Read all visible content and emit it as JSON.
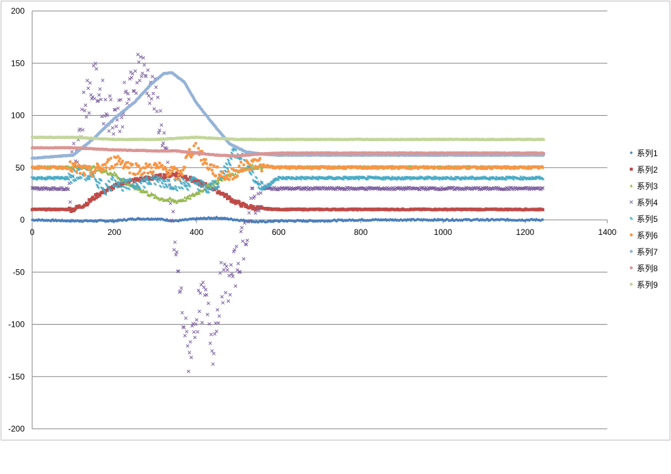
{
  "chart_data": {
    "type": "scatter",
    "title": "",
    "xlabel": "",
    "ylabel": "",
    "xlim": [
      0,
      1400
    ],
    "ylim": [
      -200,
      200
    ],
    "x_ticks": [
      "0",
      "200",
      "400",
      "600",
      "800",
      "1000",
      "1200",
      "1400"
    ],
    "y_ticks": [
      "200",
      "150",
      "100",
      "50",
      "0",
      "-50",
      "-100",
      "-150",
      "-200"
    ],
    "grid": "horizontal major gridlines",
    "legend_position": "right",
    "series": [
      {
        "name": "系列1",
        "color": "#4a7ebb",
        "marker": "diamond",
        "points": [
          [
            0,
            0
          ],
          [
            100,
            -1
          ],
          [
            150,
            -1
          ],
          [
            200,
            -1
          ],
          [
            250,
            1
          ],
          [
            300,
            1
          ],
          [
            350,
            -1
          ],
          [
            400,
            1
          ],
          [
            450,
            2
          ],
          [
            500,
            0
          ],
          [
            550,
            -2
          ],
          [
            600,
            -1
          ],
          [
            700,
            -1
          ],
          [
            800,
            0
          ],
          [
            1000,
            0
          ],
          [
            1245,
            0
          ]
        ]
      },
      {
        "name": "系列2",
        "color": "#be4b48",
        "marker": "square",
        "points": [
          [
            0,
            10
          ],
          [
            50,
            10
          ],
          [
            100,
            10
          ],
          [
            130,
            15
          ],
          [
            160,
            24
          ],
          [
            190,
            30
          ],
          [
            220,
            35
          ],
          [
            250,
            38
          ],
          [
            290,
            40
          ],
          [
            320,
            42
          ],
          [
            350,
            44
          ],
          [
            370,
            42
          ],
          [
            400,
            36
          ],
          [
            430,
            32
          ],
          [
            460,
            26
          ],
          [
            490,
            18
          ],
          [
            520,
            13
          ],
          [
            550,
            11
          ],
          [
            600,
            10
          ],
          [
            800,
            10
          ],
          [
            1000,
            10
          ],
          [
            1245,
            10
          ]
        ]
      },
      {
        "name": "系列3",
        "color": "#98b954",
        "marker": "triangle",
        "points": [
          [
            0,
            51
          ],
          [
            100,
            51
          ],
          [
            150,
            50
          ],
          [
            200,
            44
          ],
          [
            240,
            33
          ],
          [
            270,
            28
          ],
          [
            300,
            22
          ],
          [
            320,
            20
          ],
          [
            350,
            18
          ],
          [
            380,
            21
          ],
          [
            410,
            28
          ],
          [
            440,
            35
          ],
          [
            470,
            41
          ],
          [
            500,
            47
          ],
          [
            530,
            51
          ],
          [
            550,
            51
          ],
          [
            600,
            51
          ],
          [
            800,
            51
          ],
          [
            1000,
            51
          ],
          [
            1245,
            51
          ]
        ]
      },
      {
        "name": "系列4",
        "color": "#7d60a0",
        "marker": "x",
        "points": [
          [
            0,
            30
          ],
          [
            50,
            30
          ],
          [
            90,
            30
          ],
          [
            110,
            75
          ],
          [
            130,
            115
          ],
          [
            155,
            132
          ],
          [
            180,
            105
          ],
          [
            210,
            100
          ],
          [
            240,
            125
          ],
          [
            260,
            150
          ],
          [
            280,
            135
          ],
          [
            300,
            115
          ],
          [
            320,
            80
          ],
          [
            335,
            20
          ],
          [
            350,
            -35
          ],
          [
            365,
            -85
          ],
          [
            380,
            -130
          ],
          [
            400,
            -90
          ],
          [
            420,
            -75
          ],
          [
            440,
            -120
          ],
          [
            460,
            -60
          ],
          [
            480,
            -60
          ],
          [
            500,
            -40
          ],
          [
            520,
            -10
          ],
          [
            540,
            20
          ],
          [
            560,
            30
          ],
          [
            600,
            30
          ],
          [
            800,
            30
          ],
          [
            1000,
            30
          ],
          [
            1245,
            30
          ]
        ]
      },
      {
        "name": "系列5",
        "color": "#46aac5",
        "marker": "star",
        "points": [
          [
            0,
            40
          ],
          [
            90,
            40
          ],
          [
            120,
            45
          ],
          [
            150,
            40
          ],
          [
            180,
            30
          ],
          [
            200,
            38
          ],
          [
            230,
            32
          ],
          [
            260,
            36
          ],
          [
            300,
            38
          ],
          [
            330,
            36
          ],
          [
            360,
            34
          ],
          [
            400,
            36
          ],
          [
            430,
            28
          ],
          [
            460,
            40
          ],
          [
            490,
            65
          ],
          [
            520,
            62
          ],
          [
            540,
            40
          ],
          [
            560,
            30
          ],
          [
            600,
            40
          ],
          [
            700,
            40
          ],
          [
            730,
            40
          ],
          [
            800,
            40
          ],
          [
            1000,
            40
          ],
          [
            1245,
            40
          ]
        ]
      },
      {
        "name": "系列6",
        "color": "#f79646",
        "marker": "circle",
        "points": [
          [
            0,
            50
          ],
          [
            100,
            50
          ],
          [
            140,
            45
          ],
          [
            180,
            52
          ],
          [
            210,
            58
          ],
          [
            240,
            50
          ],
          [
            270,
            48
          ],
          [
            300,
            50
          ],
          [
            330,
            48
          ],
          [
            360,
            42
          ],
          [
            380,
            62
          ],
          [
            400,
            70
          ],
          [
            420,
            55
          ],
          [
            450,
            45
          ],
          [
            480,
            42
          ],
          [
            510,
            50
          ],
          [
            540,
            55
          ],
          [
            560,
            52
          ],
          [
            600,
            50
          ],
          [
            800,
            50
          ],
          [
            1000,
            50
          ],
          [
            1245,
            50
          ]
        ]
      },
      {
        "name": "系列7",
        "color": "#95b3d7",
        "marker": "line",
        "points": [
          [
            0,
            59
          ],
          [
            100,
            62
          ],
          [
            150,
            78
          ],
          [
            200,
            97
          ],
          [
            250,
            113
          ],
          [
            290,
            130
          ],
          [
            320,
            140
          ],
          [
            340,
            141
          ],
          [
            370,
            132
          ],
          [
            400,
            112
          ],
          [
            440,
            92
          ],
          [
            480,
            73
          ],
          [
            520,
            65
          ],
          [
            560,
            63
          ],
          [
            600,
            62
          ],
          [
            800,
            62
          ],
          [
            1000,
            62
          ],
          [
            1245,
            62
          ]
        ]
      },
      {
        "name": "系列8",
        "color": "#da9694",
        "marker": "line",
        "points": [
          [
            0,
            69
          ],
          [
            100,
            69
          ],
          [
            150,
            68
          ],
          [
            200,
            67
          ],
          [
            300,
            66
          ],
          [
            350,
            66
          ],
          [
            400,
            64
          ],
          [
            450,
            62
          ],
          [
            500,
            61
          ],
          [
            550,
            63
          ],
          [
            600,
            64
          ],
          [
            800,
            64
          ],
          [
            1000,
            64
          ],
          [
            1245,
            64
          ]
        ]
      },
      {
        "name": "系列9",
        "color": "#c3d69b",
        "marker": "line",
        "points": [
          [
            0,
            79
          ],
          [
            100,
            79
          ],
          [
            150,
            78
          ],
          [
            200,
            77
          ],
          [
            300,
            77
          ],
          [
            400,
            79
          ],
          [
            450,
            78
          ],
          [
            500,
            77
          ],
          [
            550,
            77
          ],
          [
            600,
            77
          ],
          [
            800,
            77
          ],
          [
            1000,
            77
          ],
          [
            1245,
            77
          ]
        ]
      }
    ]
  }
}
